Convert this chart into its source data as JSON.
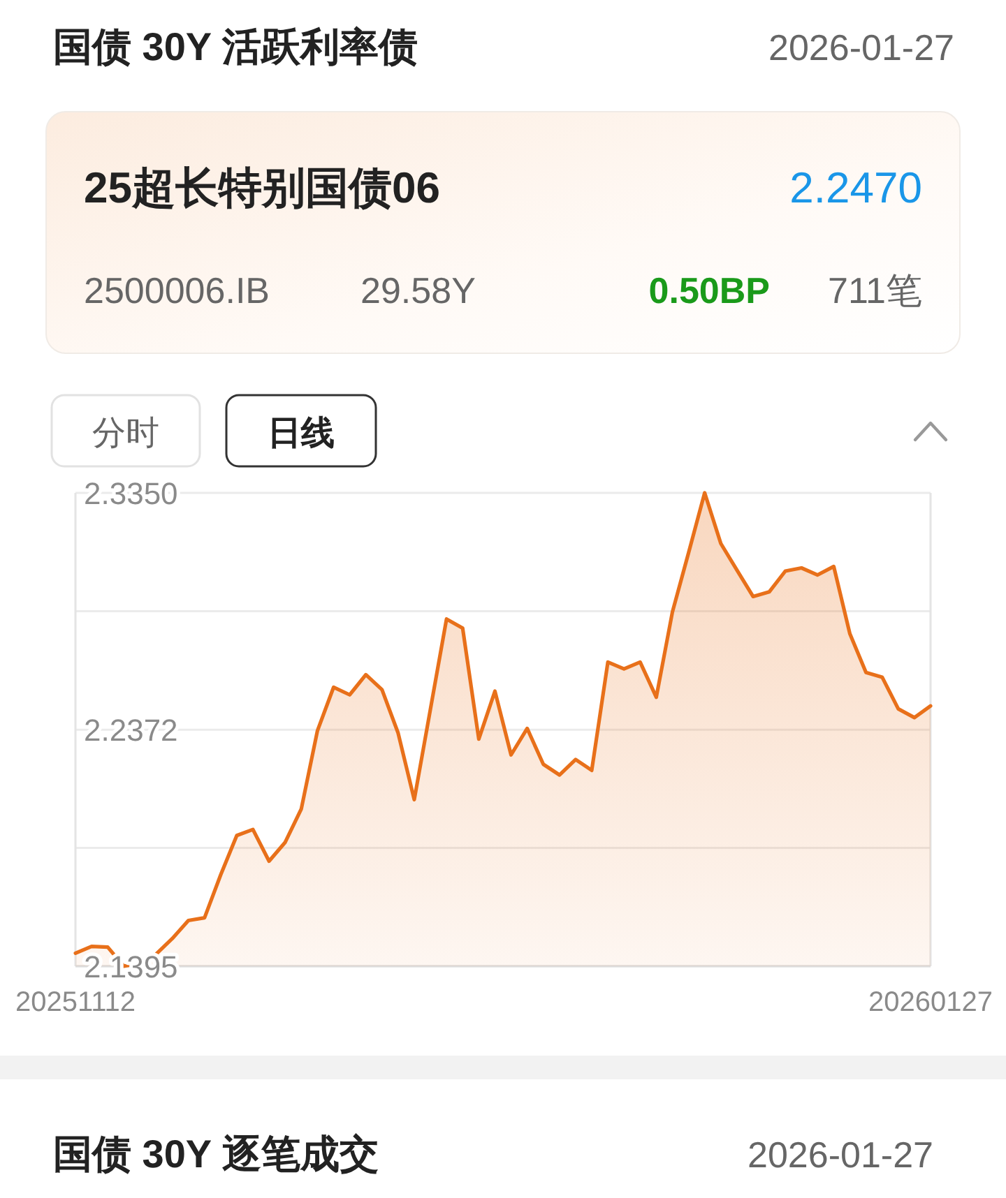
{
  "chart_data": {
    "type": "area",
    "title": "国债 30Y 活跃利率债",
    "subtitle": "2026-01-27",
    "annotations": [
      "25超长特别国债06",
      "2.2470",
      "2500006.IB",
      "29.58Y",
      "0.50BP",
      "711笔",
      "分时",
      "日线",
      "国债 30Y 逐笔成交",
      "2026-01-27"
    ],
    "categories": [
      "20251112",
      null,
      null,
      null,
      null,
      null,
      null,
      null,
      null,
      null,
      null,
      null,
      null,
      null,
      null,
      null,
      null,
      null,
      null,
      null,
      null,
      null,
      null,
      null,
      null,
      null,
      null,
      null,
      null,
      null,
      null,
      null,
      null,
      null,
      null,
      null,
      null,
      null,
      null,
      null,
      null,
      null,
      null,
      null,
      null,
      null,
      null,
      null,
      null,
      null,
      null,
      null,
      null,
      "20260127"
    ],
    "values": [
      2.1449,
      2.1477,
      2.1474,
      2.1395,
      2.1407,
      2.1445,
      2.1509,
      2.1584,
      2.1595,
      2.1772,
      2.1935,
      2.196,
      2.1829,
      2.1907,
      2.2045,
      2.2368,
      2.2547,
      2.2516,
      2.2599,
      2.2537,
      2.2358,
      2.2083,
      2.2456,
      2.2829,
      2.2791,
      2.2333,
      2.2531,
      2.2268,
      2.2377,
      2.2229,
      2.2185,
      2.2249,
      2.2204,
      2.2651,
      2.2623,
      2.2651,
      2.2506,
      2.2858,
      2.3102,
      2.335,
      2.3141,
      2.3031,
      2.2922,
      2.2941,
      2.3027,
      2.304,
      2.3011,
      2.3046,
      2.2768,
      2.2608,
      2.2589,
      2.2458,
      2.2422,
      2.247
    ],
    "color": "#e8701a",
    "ylim": [
      2.1395,
      2.335
    ],
    "yticks": [
      2.1395,
      {
        "value": 2.18835,
        "label": null
      },
      2.2372,
      {
        "value": 2.28615,
        "label": null
      },
      {
        "value": 2.335,
        "label": "2.3350"
      }
    ],
    "grid": "y"
  }
}
